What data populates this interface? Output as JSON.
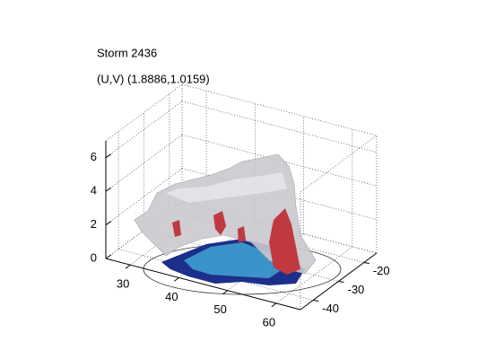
{
  "chart_data": {
    "type": "isosurface",
    "title": "Storm 2436",
    "subtitle": "(U,V) (1.8886,1.0159)",
    "xlim": [
      25,
      65
    ],
    "xticks": [
      30,
      40,
      50,
      60
    ],
    "ylim": [
      -45,
      -15
    ],
    "yticks": [
      -40,
      -30,
      -20
    ],
    "zlim": [
      0,
      7
    ],
    "zticks": [
      0,
      2,
      4,
      6
    ],
    "grid": true
  }
}
